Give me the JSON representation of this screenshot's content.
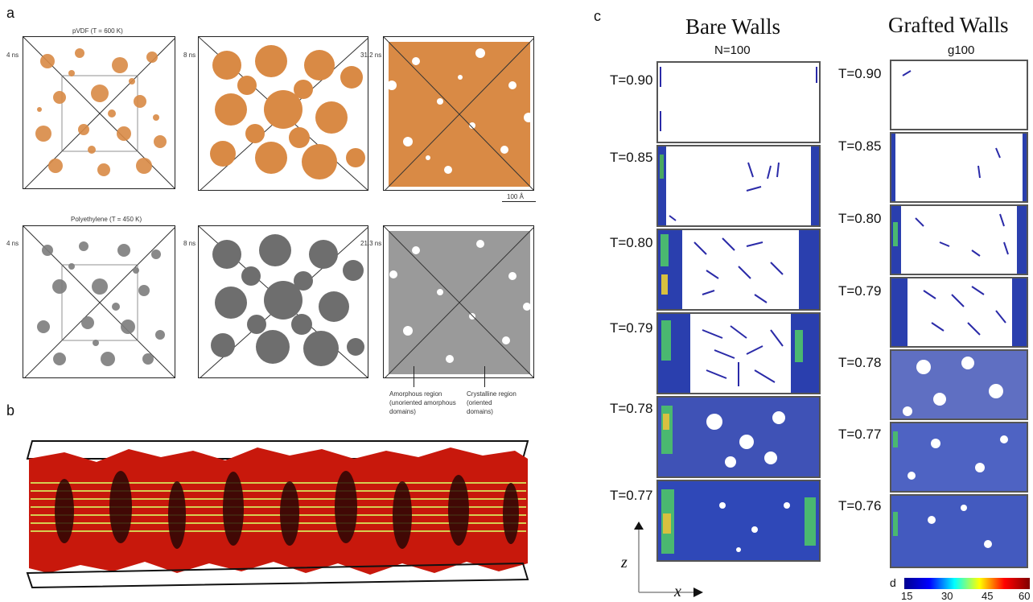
{
  "panels": {
    "a": {
      "label": "a",
      "row1_title": "pVDF (T = 600 K)",
      "row2_title": "Polyethylene (T = 450 K)",
      "row1_times": [
        "4 ns",
        "8 ns",
        "31.2 ns"
      ],
      "row2_times": [
        "4 ns",
        "8 ns",
        "21.3 ns"
      ],
      "scale_bar": "100 Å",
      "annotations": {
        "amorphous": "Amorphous region (unoriented amorphous domains)",
        "crystalline": "Crystalline region (oriented domains)"
      },
      "colors": {
        "pvdf": "#d98a45",
        "pe": "#7d7d7d"
      }
    },
    "b": {
      "label": "b",
      "colors": {
        "main": "#c8180c",
        "stripe": "#d7e25a"
      }
    },
    "c": {
      "label": "c",
      "bare_title": "Bare Walls",
      "bare_subtitle": "N=100",
      "grafted_title": "Grafted Walls",
      "grafted_subtitle": "g100",
      "bare_temps": [
        "T=0.90",
        "T=0.85",
        "T=0.80",
        "T=0.79",
        "T=0.78",
        "T=0.77"
      ],
      "grafted_temps": [
        "T=0.90",
        "T=0.85",
        "T=0.80",
        "T=0.79",
        "T=0.78",
        "T=0.77",
        "T=0.76"
      ],
      "axis_z": "z",
      "axis_x": "x",
      "colorbar": {
        "label": "d",
        "ticks": [
          "15",
          "30",
          "45",
          "60"
        ]
      }
    }
  }
}
